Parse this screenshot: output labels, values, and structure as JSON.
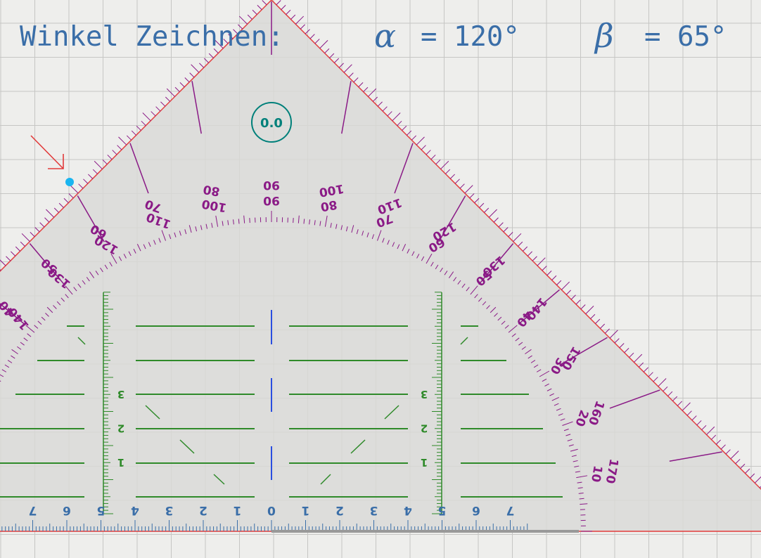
{
  "heading": {
    "task_label": "Winkel Zeichnen:",
    "alpha_symbol": "α",
    "alpha_value": "= 120°",
    "beta_symbol": "β",
    "beta_value": "= 65°"
  },
  "tool": {
    "name": "Geodreieck",
    "angle_readout": "0.0",
    "arc_outer_labels": [
      "10",
      "20",
      "30",
      "40",
      "50",
      "60",
      "70",
      "80",
      "90",
      "100",
      "110",
      "120",
      "130",
      "140",
      "150",
      "160",
      "170"
    ],
    "arc_inner_labels": [
      "10",
      "20",
      "30",
      "40",
      "50",
      "60",
      "70",
      "80",
      "90",
      "100",
      "110",
      "120",
      "130",
      "140",
      "150",
      "160",
      "170"
    ],
    "baseline_labels": [
      "7",
      "6",
      "5",
      "4",
      "3",
      "2",
      "1",
      "0",
      "1",
      "2",
      "3",
      "4",
      "5",
      "6",
      "7"
    ],
    "vertical_scale_labels": [
      "1",
      "2",
      "3"
    ]
  },
  "colors": {
    "background": "#eeeeec",
    "grid": "#c6c6c4",
    "tool_fill": "#d9d9d7",
    "tool_edge": "#e23b3b",
    "angle_scale": "#8a1a86",
    "mm_scale": "#3a6ea8",
    "guide_lines": "#2f8a2a",
    "readout": "#00807a",
    "handle": "#19b5f0",
    "heading": "#3a6ea8",
    "arrow": "#e23b3b"
  },
  "icons": {
    "pointer": "arrow-icon",
    "vertex_handle": "drag-handle-icon",
    "rotation_readout": "rotation-icon"
  }
}
